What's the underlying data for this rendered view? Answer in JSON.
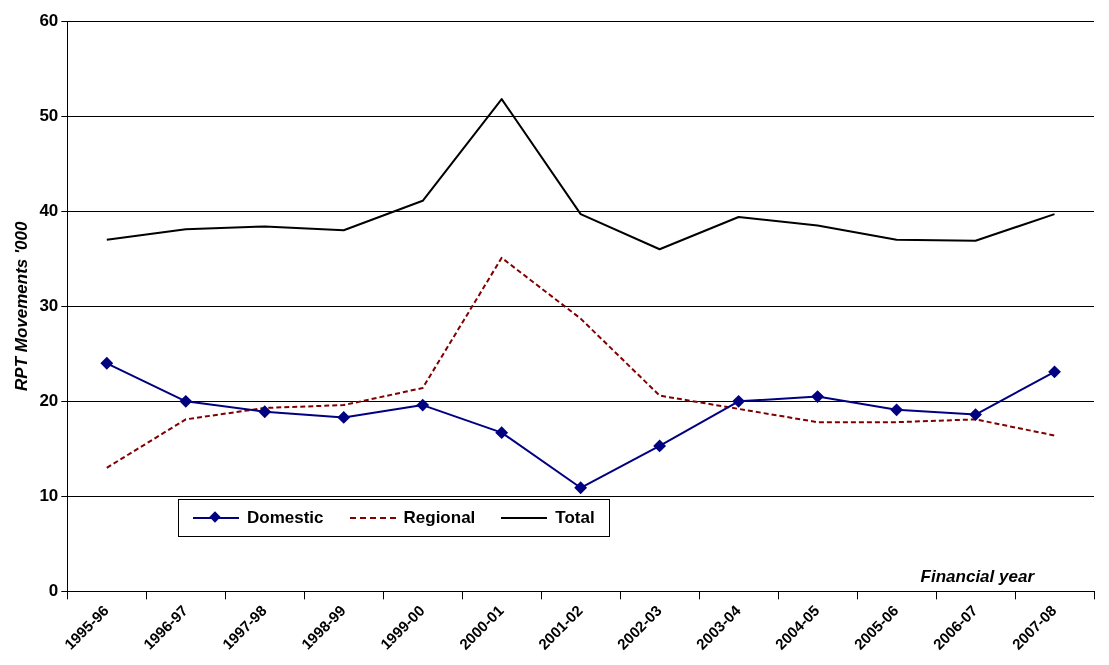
{
  "chart_data": {
    "type": "line",
    "ylabel": "RPT Movements '000",
    "xlabel": "Financial year",
    "categories": [
      "1995-96",
      "1996-97",
      "1997-98",
      "1998-99",
      "1999-00",
      "2000-01",
      "2001-02",
      "2002-03",
      "2003-04",
      "2004-05",
      "2005-06",
      "2006-07",
      "2007-08"
    ],
    "series": [
      {
        "name": "Domestic",
        "color": "#000080",
        "marker": "diamond",
        "line_style": "solid",
        "values": [
          24.0,
          20.0,
          18.9,
          18.3,
          19.6,
          16.7,
          10.9,
          15.3,
          20.0,
          20.5,
          19.1,
          18.6,
          23.1
        ]
      },
      {
        "name": "Regional",
        "color": "#800000",
        "marker": "none",
        "line_style": "dashed",
        "values": [
          13.0,
          18.1,
          19.3,
          19.6,
          21.4,
          35.1,
          28.7,
          20.6,
          19.2,
          17.8,
          17.8,
          18.1,
          16.4
        ]
      },
      {
        "name": "Total",
        "color": "#000000",
        "marker": "none",
        "line_style": "solid",
        "values": [
          37.0,
          38.1,
          38.4,
          38.0,
          41.1,
          51.8,
          39.7,
          36.0,
          39.4,
          38.5,
          37.0,
          36.9,
          39.7
        ]
      }
    ],
    "ylim": [
      0,
      60
    ],
    "yticks": [
      0,
      10,
      20,
      30,
      40,
      50,
      60
    ],
    "grid": "y",
    "legend": "bottom left"
  }
}
